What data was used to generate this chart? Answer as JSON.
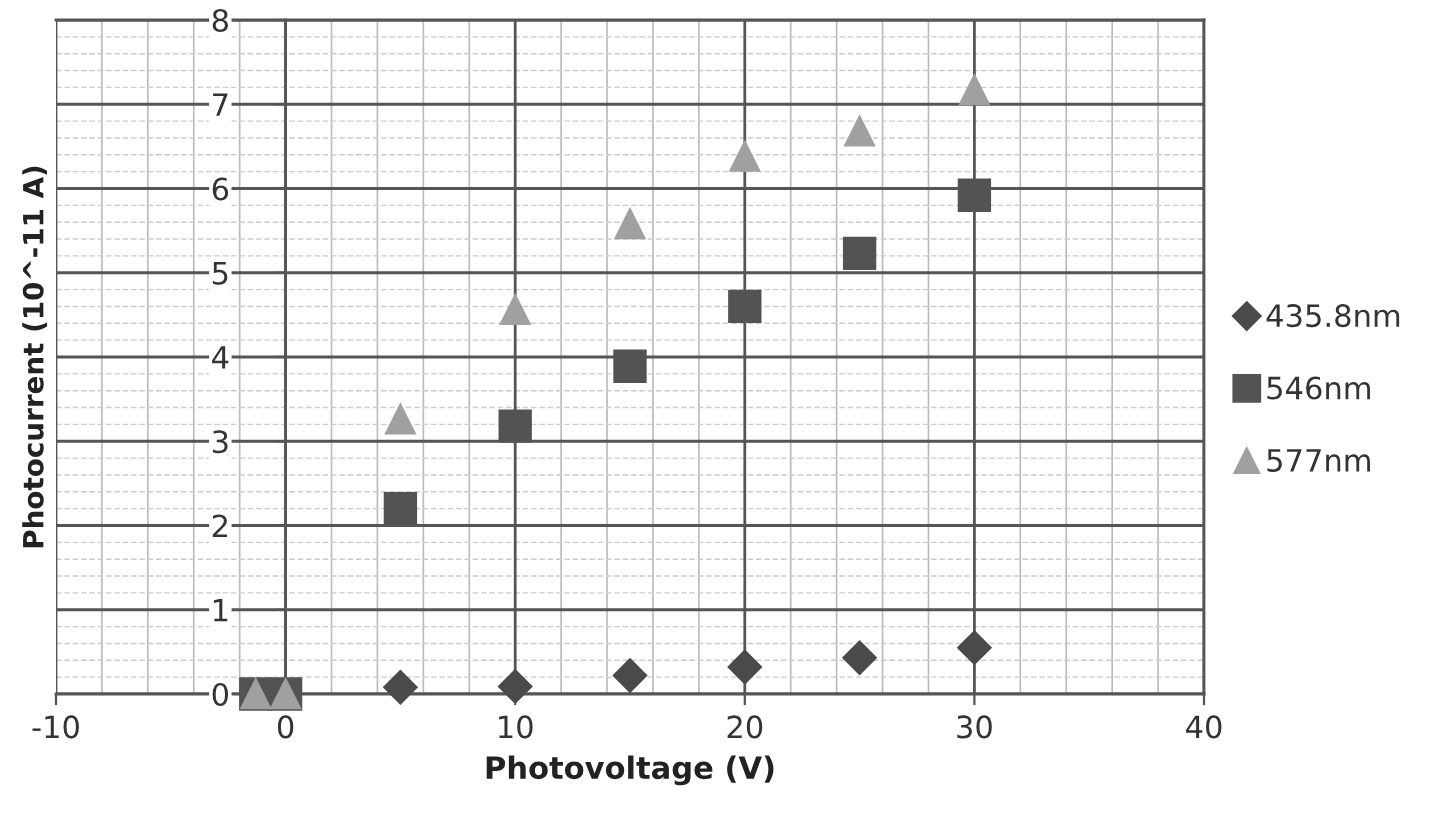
{
  "chart_data": {
    "type": "scatter",
    "xlabel": "Photovoltage (V)",
    "ylabel": "Photocurrent (10^-11 A)",
    "xlim": [
      -10,
      40
    ],
    "xticks": [
      -10,
      0,
      10,
      20,
      30,
      40
    ],
    "ylim": [
      0,
      8
    ],
    "yticks": [
      0,
      1,
      2,
      3,
      4,
      5,
      6,
      7,
      8
    ],
    "grid": true,
    "legend": "right",
    "series": [
      {
        "name": "435.8nm",
        "color": "#4a4a4a",
        "marker": "diamond",
        "x": [
          5,
          10,
          15,
          20,
          25,
          30
        ],
        "values": [
          0.08,
          0.09,
          0.22,
          0.32,
          0.43,
          0.55
        ]
      },
      {
        "name": "546nm",
        "color": "#535353",
        "marker": "square",
        "x": [
          -1.3,
          0,
          5,
          10,
          15,
          20,
          25,
          30
        ],
        "values": [
          0,
          0,
          2.2,
          3.18,
          3.89,
          4.6,
          5.23,
          5.92
        ]
      },
      {
        "name": "577nm",
        "color": "#a0a0a0",
        "marker": "triangle",
        "x": [
          -1.3,
          0,
          5,
          10,
          15,
          20,
          25,
          30
        ],
        "values": [
          0,
          0,
          3.26,
          4.56,
          5.58,
          6.38,
          6.68,
          7.17
        ]
      }
    ]
  }
}
